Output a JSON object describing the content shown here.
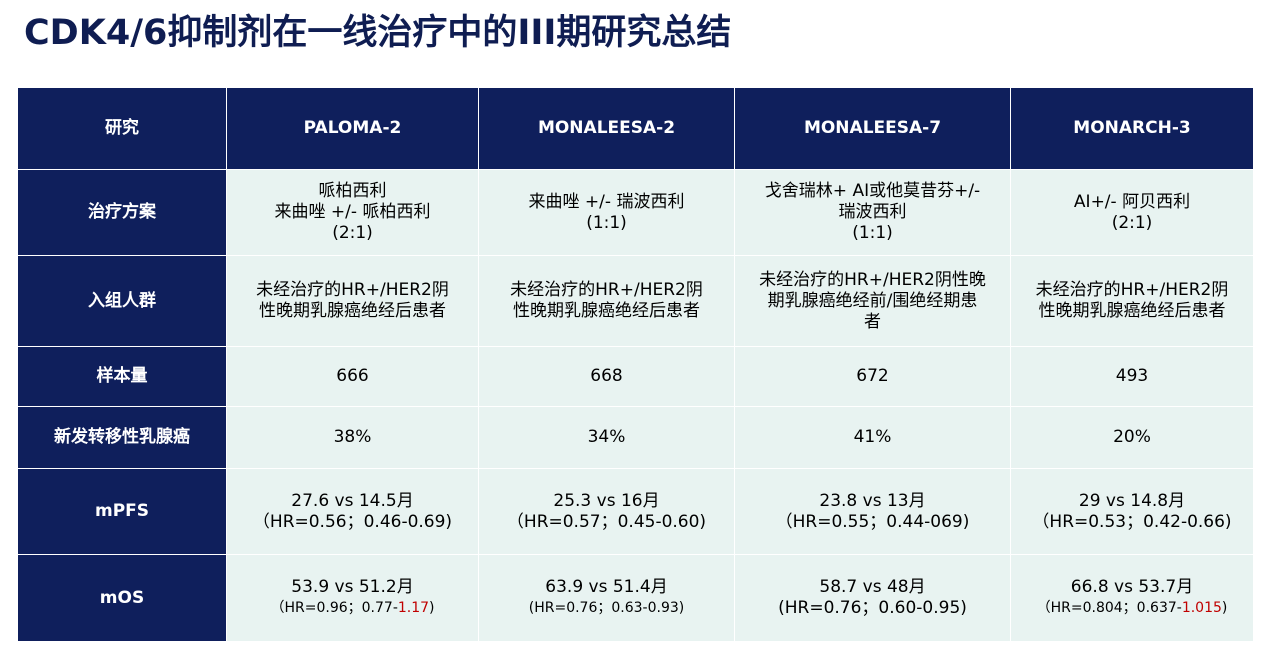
{
  "title": "CDK4/6抑制剂在一线治疗中的III期研究总结",
  "table": {
    "headers": [
      "研究",
      "PALOMA-2",
      "MONALEESA-2",
      "MONALEESA-7",
      "MONARCH-3"
    ],
    "treatment": {
      "label": "治疗方案",
      "cells": [
        [
          "哌柏西利",
          "来曲唑 +/- 哌柏西利",
          "(2:1)"
        ],
        [
          "来曲唑 +/- 瑞波西利",
          "(1:1)"
        ],
        [
          "戈舍瑞林+ AI或他莫昔芬+/-",
          "瑞波西利",
          "(1:1)"
        ],
        [
          "AI+/- 阿贝西利",
          "(2:1)"
        ]
      ]
    },
    "population": {
      "label": "入组人群",
      "cells": [
        [
          "未经治疗的HR+/HER2阴",
          "性晚期乳腺癌绝经后患者"
        ],
        [
          "未经治疗的HR+/HER2阴",
          "性晚期乳腺癌绝经后患者"
        ],
        [
          "未经治疗的HR+/HER2阴性晚",
          "期乳腺癌绝经前/围绝经期患",
          "者"
        ],
        [
          "未经治疗的HR+/HER2阴",
          "性晚期乳腺癌绝经后患者"
        ]
      ]
    },
    "sample_size": {
      "label": "样本量",
      "cells": [
        "666",
        "668",
        "672",
        "493"
      ]
    },
    "de_novo": {
      "label": "新发转移性乳腺癌",
      "cells": [
        "38%",
        "34%",
        "41%",
        "20%"
      ]
    },
    "mpfs": {
      "label": "mPFS",
      "cells": [
        [
          "27.6 vs 14.5月",
          "（HR=0.56；0.46-0.69)"
        ],
        [
          "25.3 vs 16月",
          "（HR=0.57；0.45-0.60)"
        ],
        [
          "23.8 vs 13月",
          "（HR=0.55；0.44-069)"
        ],
        [
          "29 vs 14.8月",
          "（HR=0.53；0.42-0.66)"
        ]
      ]
    },
    "mos": {
      "label": "mOS",
      "c1": {
        "main": "53.9 vs 51.2月",
        "hr": "（HR=0.96；0.77-",
        "hr_red": "1.17",
        "hr_end": ")"
      },
      "c2": {
        "main": "63.9 vs 51.4月",
        "hr": "(HR=0.76；0.63-0.93)"
      },
      "c3": {
        "main": "58.7 vs 48月",
        "hr": "(HR=0.76；0.60-0.95)"
      },
      "c4": {
        "main": "66.8 vs 53.7月",
        "hr": "（HR=0.804；0.637-",
        "hr_red": "1.015",
        "hr_end": ")"
      }
    }
  }
}
